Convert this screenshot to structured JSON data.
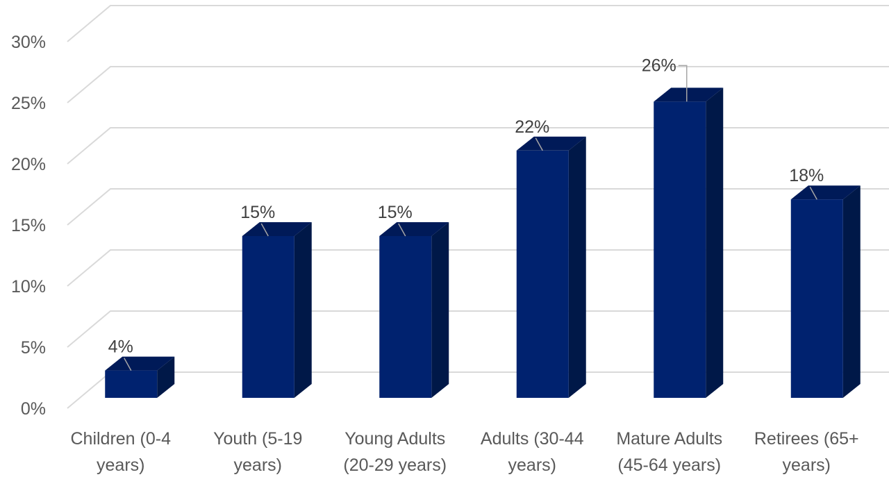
{
  "colors": {
    "bar_front": "#00226f",
    "bar_top": "#001a58",
    "bar_side": "#001848",
    "grid": "#d9d9d9",
    "text": "#595959"
  },
  "chart_data": {
    "type": "bar",
    "three_d": true,
    "categories": [
      "Children (0-4 years)",
      "Youth (5-19 years)",
      "Young Adults (20-29 years)",
      "Adults (30-44 years)",
      "Mature Adults (45-64 years)",
      "Retirees (65+ years)"
    ],
    "series": [
      {
        "values": [
          4,
          15,
          15,
          22,
          26,
          18
        ]
      }
    ],
    "data_labels": [
      "4%",
      "15%",
      "15%",
      "22%",
      "26%",
      "18%"
    ],
    "y_ticks": [
      "0%",
      "5%",
      "10%",
      "15%",
      "20%",
      "25%",
      "30%"
    ],
    "ylim": [
      0,
      30
    ],
    "y_unit": "%",
    "grid": true,
    "legend": "none"
  }
}
